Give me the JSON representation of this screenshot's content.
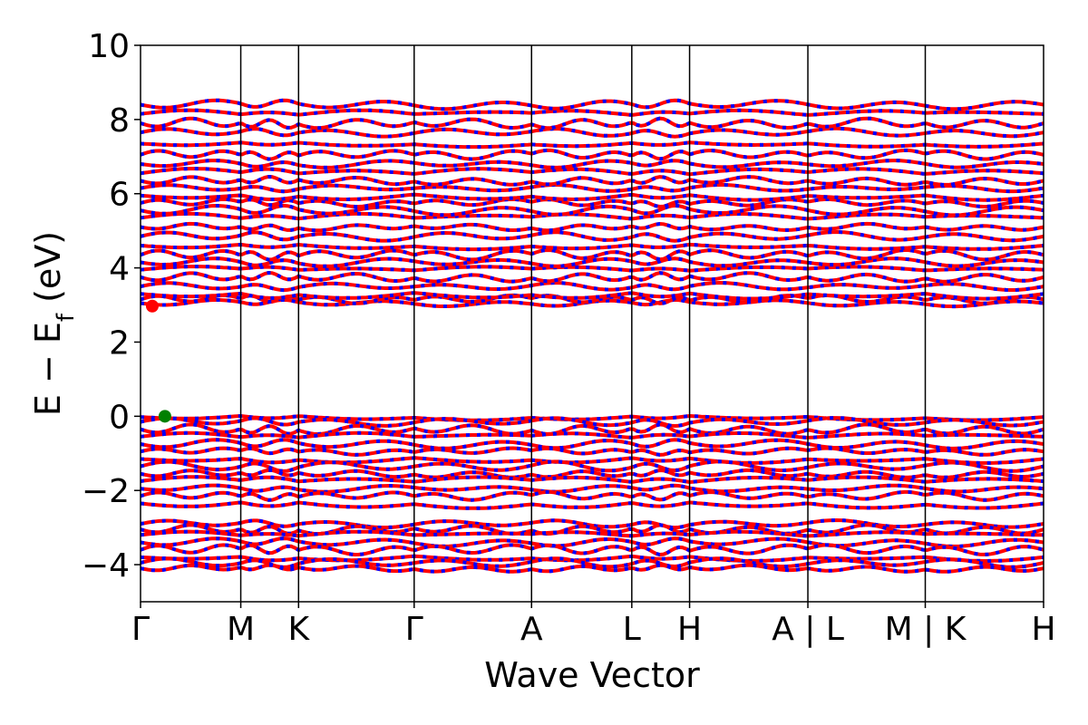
{
  "chart_data": {
    "type": "line",
    "title": "",
    "xlabel": "Wave Vector",
    "ylabel": {
      "base": "E − E",
      "subscript": "f",
      "unit": " (eV)"
    },
    "ylim": [
      -5,
      10
    ],
    "xlim": [
      0,
      1
    ],
    "y_ticks": [
      {
        "value": -4,
        "label": "−4"
      },
      {
        "value": -2,
        "label": "−2"
      },
      {
        "value": 0,
        "label": "0"
      },
      {
        "value": 2,
        "label": "2"
      },
      {
        "value": 4,
        "label": "4"
      },
      {
        "value": 6,
        "label": "6"
      },
      {
        "value": 8,
        "label": "8"
      },
      {
        "value": 10,
        "label": "10"
      }
    ],
    "k_path": [
      {
        "label": "Γ",
        "position": 0.0
      },
      {
        "label": "M",
        "position": 0.111
      },
      {
        "label": "K",
        "position": 0.175
      },
      {
        "label": "Γ",
        "position": 0.303
      },
      {
        "label": "A",
        "position": 0.433
      },
      {
        "label": "L",
        "position": 0.544
      },
      {
        "label": "H",
        "position": 0.608
      },
      {
        "label": "A | L",
        "position": 0.739
      },
      {
        "label": "M | K",
        "position": 0.869
      },
      {
        "label": "H",
        "position": 1.0
      }
    ],
    "band_colors": {
      "spin_a": "#ff0000",
      "spin_b": "#0000ff"
    },
    "band_energies": {
      "valence": [
        -0.02,
        -0.15,
        -0.35,
        -0.55,
        -0.75,
        -0.95,
        -1.15,
        -1.35,
        -1.55,
        -1.75,
        -1.95,
        -2.15,
        -2.35,
        -2.9,
        -3.05,
        -3.2,
        -3.4,
        -3.6,
        -3.8,
        -3.95,
        -4.1
      ],
      "conduction": [
        3.05,
        3.15,
        3.3,
        3.5,
        3.75,
        3.95,
        4.15,
        4.35,
        4.6,
        4.85,
        5.1,
        5.35,
        5.55,
        5.75,
        5.95,
        6.15,
        6.35,
        6.55,
        6.8,
        7.05,
        7.35,
        7.65,
        7.9,
        8.15,
        8.4
      ]
    },
    "markers": [
      {
        "name": "cbm-marker",
        "x": 0.013,
        "y": 2.97,
        "color": "#ff0000"
      },
      {
        "name": "vbm-marker",
        "x": 0.027,
        "y": 0.0,
        "color": "#008000"
      }
    ],
    "grid": false,
    "legend": "none"
  }
}
